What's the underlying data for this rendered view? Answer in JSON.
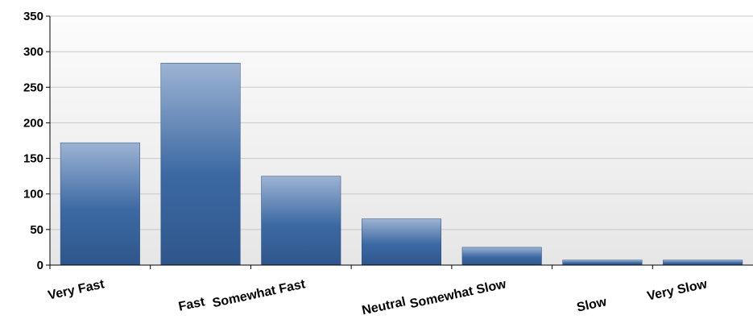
{
  "chart_data": {
    "type": "bar",
    "title": "",
    "xlabel": "",
    "ylabel": "",
    "categories": [
      "Very Fast",
      "Fast",
      "Somewhat Fast",
      "Neutral",
      "Somewhat Slow",
      "Slow",
      "Very Slow"
    ],
    "values": [
      172,
      284,
      125,
      65,
      25,
      7,
      7
    ],
    "ylim": [
      0,
      350
    ],
    "yticks": [
      0,
      50,
      100,
      150,
      200,
      250,
      300,
      350
    ],
    "grid": true,
    "legend": "none",
    "colors": {
      "bar_top": "#9db3d3",
      "bar_mid": "#3c69a3",
      "bar_bottom": "#2f568b",
      "grid": "#c8c8c8",
      "plot_bg_top": "#fcfcfc",
      "plot_bg_bottom": "#e6e6e6"
    }
  }
}
